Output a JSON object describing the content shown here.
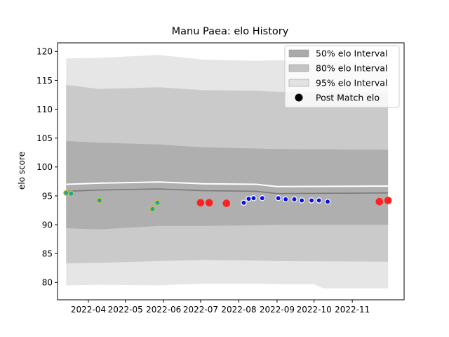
{
  "chart_data": {
    "type": "area",
    "title": "Manu Paea: elo History",
    "xlabel": "",
    "ylabel": "elo score",
    "ylim": [
      77,
      121.5
    ],
    "xlim": [
      "2022-03-07",
      "2022-12-13"
    ],
    "grid": false,
    "legend_position": "top-right",
    "x_ticks": [
      "2022-04",
      "2022-05",
      "2022-06",
      "2022-07",
      "2022-08",
      "2022-09",
      "2022-10",
      "2022-11"
    ],
    "y_ticks": [
      80,
      85,
      90,
      95,
      100,
      105,
      110,
      115,
      120
    ],
    "legend": [
      {
        "label": "50% elo Interval",
        "kind": "patch",
        "color": "#aaaaaa"
      },
      {
        "label": "80% elo Interval",
        "kind": "patch",
        "color": "#c4c4c4"
      },
      {
        "label": "95% elo Interval",
        "kind": "patch",
        "color": "#e2e2e2"
      },
      {
        "label": "Post Match elo",
        "kind": "marker",
        "color": "#000000"
      }
    ],
    "series": [
      {
        "name": "Rating",
        "x": [
          "2022-03-14",
          "2022-04-10",
          "2022-05-28",
          "2022-07-03",
          "2022-08-15",
          "2022-09-01",
          "2022-11-30"
        ],
        "values": [
          95.8,
          96.0,
          96.2,
          95.9,
          95.8,
          95.4,
          95.5
        ]
      },
      {
        "name": "95% elo Interval",
        "x": [
          "2022-03-14",
          "2022-04-10",
          "2022-05-28",
          "2022-07-03",
          "2022-08-15",
          "2022-09-01",
          "2022-10-01",
          "2022-10-08",
          "2022-11-30"
        ],
        "upper": [
          118.8,
          118.9,
          119.4,
          118.6,
          118.4,
          118.5,
          118.3,
          118.2,
          118.2
        ],
        "lower": [
          79.5,
          79.6,
          79.5,
          79.8,
          79.8,
          79.7,
          79.7,
          79.0,
          79.0
        ]
      },
      {
        "name": "80% elo Interval",
        "x": [
          "2022-03-14",
          "2022-04-10",
          "2022-05-28",
          "2022-07-03",
          "2022-08-15",
          "2022-09-01",
          "2022-11-30"
        ],
        "upper": [
          114.2,
          113.5,
          113.8,
          113.3,
          113.2,
          113.0,
          112.8
        ],
        "lower": [
          83.3,
          83.4,
          83.7,
          83.9,
          83.8,
          83.7,
          83.6
        ]
      },
      {
        "name": "50% elo Interval",
        "x": [
          "2022-03-14",
          "2022-04-10",
          "2022-05-28",
          "2022-07-03",
          "2022-08-15",
          "2022-09-01",
          "2022-11-30"
        ],
        "upper": [
          104.5,
          104.2,
          103.9,
          103.4,
          103.2,
          103.1,
          103.0
        ],
        "lower": [
          89.4,
          89.2,
          89.8,
          89.8,
          89.9,
          90.0,
          90.0
        ]
      },
      {
        "name": "Post Match elo",
        "points": [
          {
            "x": "2022-03-14",
            "y": 95.5,
            "color": "#1aa7a0"
          },
          {
            "x": "2022-03-18",
            "y": 95.4,
            "color": "#1aa7a0"
          },
          {
            "x": "2022-04-10",
            "y": 94.2,
            "color": "#1aa7a0"
          },
          {
            "x": "2022-05-23",
            "y": 92.7,
            "color": "#1aa7a0"
          },
          {
            "x": "2022-05-27",
            "y": 93.8,
            "color": "#1aa7a0"
          },
          {
            "x": "2022-07-01",
            "y": 93.8,
            "color": "#ff2020"
          },
          {
            "x": "2022-07-08",
            "y": 93.8,
            "color": "#ff2020"
          },
          {
            "x": "2022-07-22",
            "y": 93.7,
            "color": "#ff2020"
          },
          {
            "x": "2022-08-05",
            "y": 93.8,
            "color": "#0b12e6"
          },
          {
            "x": "2022-08-09",
            "y": 94.5,
            "color": "#0b12e6"
          },
          {
            "x": "2022-08-13",
            "y": 94.6,
            "color": "#0b12e6"
          },
          {
            "x": "2022-08-20",
            "y": 94.6,
            "color": "#0b12e6"
          },
          {
            "x": "2022-09-02",
            "y": 94.6,
            "color": "#0b12e6"
          },
          {
            "x": "2022-09-08",
            "y": 94.4,
            "color": "#0b12e6"
          },
          {
            "x": "2022-09-15",
            "y": 94.4,
            "color": "#0b12e6"
          },
          {
            "x": "2022-09-21",
            "y": 94.2,
            "color": "#0b12e6"
          },
          {
            "x": "2022-09-29",
            "y": 94.2,
            "color": "#0b12e6"
          },
          {
            "x": "2022-10-05",
            "y": 94.2,
            "color": "#0b12e6"
          },
          {
            "x": "2022-10-12",
            "y": 94.0,
            "color": "#0b12e6"
          },
          {
            "x": "2022-11-23",
            "y": 94.0,
            "color": "#ff2020"
          },
          {
            "x": "2022-11-30",
            "y": 94.2,
            "color": "#ff2020"
          }
        ]
      }
    ]
  }
}
